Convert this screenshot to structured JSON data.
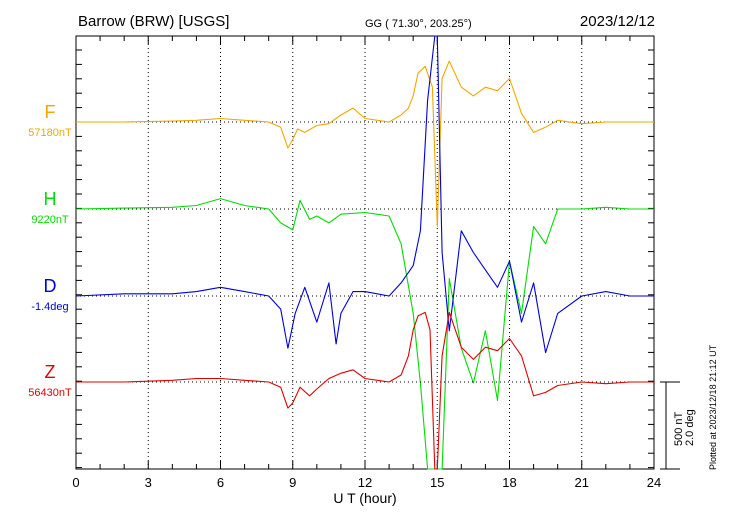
{
  "header": {
    "station": "Barrow (BRW)  [USGS]",
    "coords": "GG ( 71.30°, 203.25°)",
    "date": "2023/12/12"
  },
  "plotted_note": "Plotted at 2023/12/18 21:12 UT",
  "scale": {
    "nt": "500 nT",
    "deg": "2.0 deg"
  },
  "colors": {
    "F": "#f0a800",
    "H": "#00dd00",
    "D": "#0000dd",
    "Z": "#e00000"
  },
  "chart_data": {
    "type": "line",
    "title": "",
    "xlabel": "U T (hour)",
    "ylabel": "",
    "xlim": [
      0,
      24
    ],
    "x_ticks": [
      "0",
      "3",
      "6",
      "9",
      "12",
      "15",
      "18",
      "21",
      "24"
    ],
    "grid": true,
    "series": [
      {
        "name": "F",
        "baseline": "57180nT",
        "x": [
          0,
          2,
          4,
          5,
          6,
          7,
          8,
          8.5,
          8.8,
          9,
          9.2,
          9.5,
          10,
          10.5,
          11,
          11.5,
          12,
          13,
          13.5,
          13.8,
          14,
          14.2,
          14.5,
          14.8,
          15,
          15.2,
          15.5,
          16,
          16.5,
          17,
          17.5,
          18,
          18.5,
          19,
          19.5,
          20,
          21,
          22,
          23,
          24
        ],
        "values": [
          0,
          0,
          5,
          10,
          20,
          10,
          0,
          -30,
          -150,
          -100,
          -40,
          -60,
          -20,
          -10,
          40,
          80,
          20,
          0,
          40,
          80,
          150,
          280,
          320,
          200,
          -600,
          250,
          350,
          200,
          150,
          200,
          180,
          250,
          50,
          -60,
          -30,
          10,
          -10,
          0,
          0,
          0
        ]
      },
      {
        "name": "H",
        "baseline": "9220nT",
        "x": [
          0,
          2,
          4,
          5,
          6,
          7,
          8,
          8.5,
          9,
          9.3,
          9.7,
          10,
          10.5,
          11,
          12,
          13,
          13.5,
          14,
          14.3,
          14.6,
          14.8,
          15,
          15.2,
          15.5,
          16,
          16.5,
          17,
          17.5,
          18,
          18.5,
          19,
          19.5,
          20,
          21,
          22,
          23,
          24
        ],
        "values": [
          0,
          5,
          10,
          20,
          60,
          20,
          0,
          -80,
          -120,
          50,
          -60,
          -40,
          -80,
          -30,
          -20,
          -40,
          -200,
          -600,
          -1000,
          -1600,
          -2300,
          -2300,
          -1600,
          -400,
          -800,
          -1000,
          -700,
          -1100,
          -300,
          -600,
          -100,
          -200,
          0,
          0,
          10,
          0,
          0
        ]
      },
      {
        "name": "D",
        "baseline": "-1.4deg",
        "x": [
          0,
          2,
          4,
          5,
          6,
          7,
          8,
          8.5,
          8.8,
          9.1,
          9.5,
          10,
          10.5,
          10.8,
          11,
          11.5,
          12,
          13,
          13.5,
          14,
          14.3,
          14.6,
          14.9,
          15,
          15.2,
          15.5,
          16,
          16.5,
          17,
          17.5,
          18,
          18.5,
          19,
          19.5,
          20,
          21,
          22,
          23,
          24
        ],
        "values": [
          0,
          0.05,
          0.05,
          0.1,
          0.2,
          0.1,
          0,
          -0.3,
          -1.2,
          -0.4,
          0.2,
          -0.6,
          0.3,
          -1.1,
          -0.4,
          0.1,
          0.1,
          0,
          0.3,
          0.7,
          1.5,
          4.5,
          9,
          8,
          1,
          -0.8,
          1.5,
          1,
          0.6,
          0.2,
          0.8,
          -0.6,
          0.3,
          -1.3,
          -0.4,
          0,
          0.1,
          0,
          0
        ]
      },
      {
        "name": "Z",
        "baseline": "56430nT",
        "x": [
          0,
          2,
          4,
          5,
          6,
          7,
          8,
          8.5,
          8.8,
          9,
          9.3,
          9.7,
          10,
          10.5,
          11,
          11.5,
          12,
          13,
          13.5,
          13.8,
          14,
          14.2,
          14.5,
          14.7,
          14.9,
          15,
          15.2,
          15.5,
          16,
          16.5,
          17,
          17.5,
          18,
          18.5,
          19,
          19.5,
          20,
          21,
          22,
          23,
          24
        ],
        "values": [
          0,
          0,
          10,
          20,
          20,
          10,
          0,
          -30,
          -150,
          -120,
          -30,
          -80,
          -40,
          20,
          50,
          70,
          20,
          0,
          40,
          150,
          300,
          380,
          400,
          300,
          -600,
          -800,
          150,
          400,
          200,
          130,
          200,
          180,
          250,
          150,
          -80,
          -60,
          -20,
          0,
          -10,
          0,
          0
        ]
      }
    ]
  }
}
